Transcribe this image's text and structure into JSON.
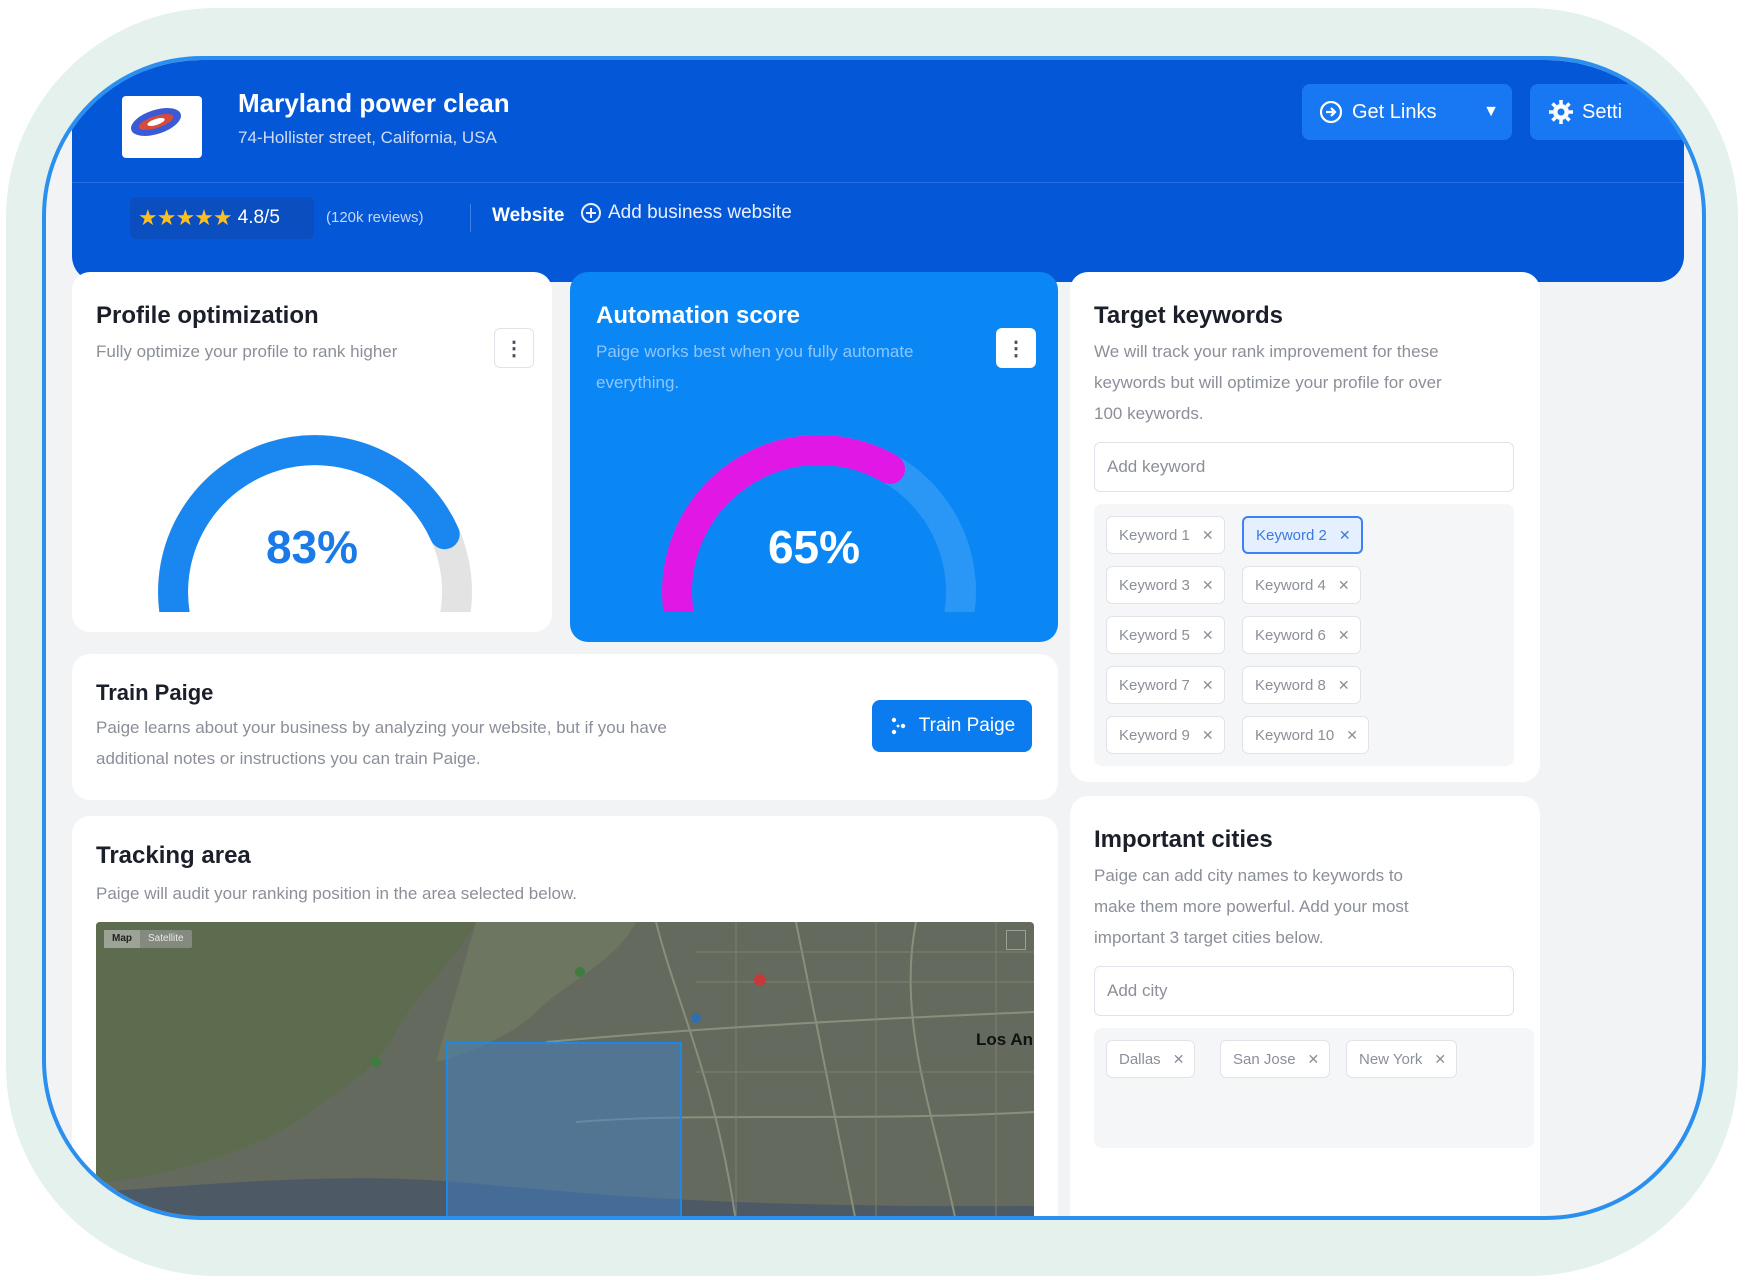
{
  "header": {
    "business_name": "Maryland power clean",
    "address": "74-Hollister street, California, USA",
    "get_links_label": "Get Links",
    "settings_label": "Setti",
    "rating": "4.8/5",
    "reviews": "(120k reviews)",
    "website_label": "Website",
    "add_website_label": "Add business website"
  },
  "profile_optimization": {
    "title": "Profile optimization",
    "subtitle": "Fully optimize your profile to rank higher",
    "percent_text": "83%",
    "percent": 83,
    "color": "#1a86f0"
  },
  "automation_score": {
    "title": "Automation score",
    "subtitle_line1": "Paige works best when you fully automate",
    "subtitle_line2": "everything.",
    "percent_text": "65%",
    "percent": 65,
    "color": "#e117e6"
  },
  "train_paige": {
    "title": "Train Paige",
    "desc_line1": "Paige learns about your business by analyzing your website, but if you have",
    "desc_line2": "additional notes or instructions you can train Paige.",
    "button_label": "Train Paige"
  },
  "tracking_area": {
    "title": "Tracking area",
    "subtitle": "Paige will audit your ranking position in the area selected below.",
    "map_tab_map": "Map",
    "map_tab_satellite": "Satellite",
    "map_city": "Los An"
  },
  "target_keywords": {
    "title": "Target keywords",
    "desc_line1": "We will track your rank improvement for these",
    "desc_line2": "keywords but will optimize your profile for over",
    "desc_line3": "100 keywords.",
    "input_placeholder": "Add keyword",
    "keywords": [
      "Keyword 1",
      "Keyword 2",
      "Keyword 3",
      "Keyword 4",
      "Keyword 5",
      "Keyword 6",
      "Keyword 7",
      "Keyword 8",
      "Keyword 9",
      "Keyword 10"
    ],
    "selected": "Keyword 2"
  },
  "important_cities": {
    "title": "Important cities",
    "desc_line1": "Paige can add city names to keywords to",
    "desc_line2": "make them more powerful. Add your most",
    "desc_line3": "important 3 target cities below.",
    "input_placeholder": "Add city",
    "cities": [
      "Dallas",
      "San Jose",
      "New York"
    ]
  },
  "colors": {
    "header_bg": "#0458d8",
    "accent": "#0b7cf0",
    "gauge_track": "#e3e3e3"
  }
}
